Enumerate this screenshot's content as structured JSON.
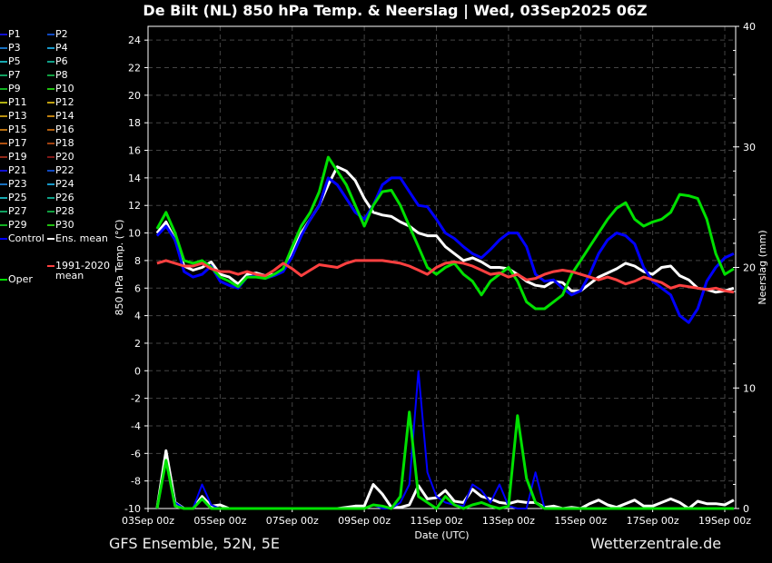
{
  "title": "De Bilt  (NL)  850 hPa Temp. & Neerslag | Wed, 03Sep2025 06Z",
  "footer": {
    "left": "GFS Ensemble, 52N, 5E",
    "right": "Wetterzentrale.de"
  },
  "legend": [
    {
      "label": "P1",
      "color": "#1010d0"
    },
    {
      "label": "P2",
      "color": "#1048c0"
    },
    {
      "label": "P3",
      "color": "#1870c0"
    },
    {
      "label": "P4",
      "color": "#1898c8"
    },
    {
      "label": "P5",
      "color": "#18a8b0"
    },
    {
      "label": "P6",
      "color": "#10a088"
    },
    {
      "label": "P7",
      "color": "#10a060"
    },
    {
      "label": "P8",
      "color": "#10a040"
    },
    {
      "label": "P9",
      "color": "#10b020"
    },
    {
      "label": "P10",
      "color": "#20c010"
    },
    {
      "label": "P11",
      "color": "#b0b010"
    },
    {
      "label": "P12",
      "color": "#c0a010"
    },
    {
      "label": "P13",
      "color": "#b89010"
    },
    {
      "label": "P14",
      "color": "#c08010"
    },
    {
      "label": "P15",
      "color": "#b87010"
    },
    {
      "label": "P16",
      "color": "#b06010"
    },
    {
      "label": "P17",
      "color": "#b05010"
    },
    {
      "label": "P18",
      "color": "#a04010"
    },
    {
      "label": "P19",
      "color": "#902818"
    },
    {
      "label": "P20",
      "color": "#801818"
    },
    {
      "label": "P21",
      "color": "#1010d0"
    },
    {
      "label": "P22",
      "color": "#1048c0"
    },
    {
      "label": "P23",
      "color": "#1870c0"
    },
    {
      "label": "P24",
      "color": "#1898c8"
    },
    {
      "label": "P25",
      "color": "#18a8b0"
    },
    {
      "label": "P26",
      "color": "#10a088"
    },
    {
      "label": "P27",
      "color": "#10a060"
    },
    {
      "label": "P28",
      "color": "#10a040"
    },
    {
      "label": "P29",
      "color": "#10b020"
    },
    {
      "label": "P30",
      "color": "#20c010"
    },
    {
      "label": "Control",
      "color": "#0000ff"
    },
    {
      "label": "Ens. mean",
      "color": "#ffffff"
    },
    {
      "label": "Oper",
      "color": "#00e000"
    },
    {
      "label": "1991-2020\nmean",
      "color": "#ff4040"
    }
  ],
  "chart_data": {
    "type": "line",
    "xlabel": "Date (UTC)",
    "ylabel": "850 hPa Temp. (°C)",
    "y2label": "Neerslag (mm)",
    "ylim": [
      -10,
      25
    ],
    "y2lim": [
      0,
      40
    ],
    "yticks": [
      -10,
      -8,
      -6,
      -4,
      -2,
      0,
      2,
      4,
      6,
      8,
      10,
      12,
      14,
      16,
      18,
      20,
      22,
      24
    ],
    "y2ticks": [
      0,
      10,
      20,
      30,
      40
    ],
    "xticks": [
      "03Sep 00z",
      "05Sep 00z",
      "07Sep 00z",
      "09Sep 00z",
      "11Sep 00z",
      "13Sep 00z",
      "15Sep 00z",
      "17Sep 00z",
      "19Sep 00z"
    ],
    "x_start": "03Sep 06z",
    "x_step_hours": 6,
    "grid": true,
    "legend_position": "left-outside",
    "temperature_series": [
      {
        "name": "Ens. mean",
        "color": "#ffffff",
        "width": 3,
        "values": [
          10.0,
          10.8,
          9.5,
          7.6,
          7.3,
          7.5,
          7.9,
          7.0,
          6.8,
          6.3,
          7.0,
          7.1,
          6.9,
          7.0,
          7.3,
          8.5,
          10.0,
          11.0,
          12.0,
          13.5,
          14.8,
          14.5,
          13.8,
          12.5,
          11.5,
          11.3,
          11.2,
          10.8,
          10.5,
          10.0,
          9.8,
          9.8,
          9.0,
          8.5,
          8.0,
          8.2,
          7.9,
          7.5,
          7.5,
          7.4,
          7.0,
          6.5,
          6.2,
          6.1,
          6.5,
          6.4,
          5.8,
          5.8,
          6.3,
          6.8,
          7.1,
          7.4,
          7.8,
          7.6,
          7.2,
          7.0,
          7.5,
          7.6,
          6.9,
          6.6,
          6.0,
          5.9,
          5.7,
          5.8,
          6.0
        ]
      },
      {
        "name": "Control",
        "color": "#0000ff",
        "width": 3,
        "values": [
          9.8,
          10.5,
          9.5,
          7.2,
          6.8,
          7.0,
          7.6,
          6.5,
          6.2,
          6.0,
          6.8,
          6.9,
          6.7,
          6.9,
          7.2,
          8.3,
          9.8,
          11.0,
          12.0,
          14.0,
          13.5,
          12.5,
          11.5,
          11.0,
          12.0,
          13.5,
          14.0,
          14.0,
          13.0,
          12.0,
          11.9,
          11.0,
          10.0,
          9.6,
          9.0,
          8.5,
          8.2,
          8.8,
          9.5,
          10.0,
          10.0,
          9.0,
          7.0,
          6.5,
          6.6,
          6.0,
          5.5,
          5.8,
          7.0,
          8.5,
          9.5,
          10.0,
          9.8,
          9.2,
          7.5,
          6.5,
          6.0,
          5.5,
          4.0,
          3.5,
          4.5,
          6.5,
          7.5,
          8.2,
          8.5
        ]
      },
      {
        "name": "Oper",
        "color": "#00e000",
        "width": 3,
        "values": [
          10.3,
          11.5,
          10.0,
          8.0,
          7.8,
          8.0,
          7.5,
          6.8,
          6.5,
          6.1,
          6.8,
          6.8,
          6.7,
          7.0,
          7.4,
          9.0,
          10.5,
          11.5,
          13.0,
          15.5,
          14.5,
          13.5,
          12.0,
          10.5,
          12.0,
          13.0,
          13.1,
          12.0,
          10.5,
          9.0,
          7.5,
          7.0,
          7.5,
          7.8,
          7.0,
          6.5,
          5.5,
          6.5,
          7.0,
          7.5,
          6.5,
          5.0,
          4.5,
          4.5,
          5.0,
          5.5,
          7.0,
          8.0,
          9.0,
          10.0,
          11.0,
          11.8,
          12.2,
          11.0,
          10.5,
          10.8,
          11.0,
          11.5,
          12.8,
          12.7,
          12.5,
          11.0,
          8.5,
          7.0,
          7.4
        ]
      },
      {
        "name": "1991-2020 mean",
        "color": "#ff4040",
        "width": 3,
        "values": [
          7.8,
          8.0,
          7.8,
          7.6,
          7.6,
          7.8,
          7.4,
          7.2,
          7.2,
          7.0,
          7.2,
          7.0,
          6.9,
          7.3,
          7.8,
          7.4,
          6.9,
          7.3,
          7.7,
          7.6,
          7.5,
          7.8,
          8.0,
          8.0,
          8.0,
          8.0,
          7.9,
          7.8,
          7.6,
          7.3,
          7.0,
          7.5,
          7.8,
          7.9,
          7.8,
          7.6,
          7.3,
          7.0,
          7.1,
          6.8,
          7.0,
          6.6,
          6.7,
          7.0,
          7.2,
          7.3,
          7.2,
          7.0,
          6.8,
          6.6,
          6.8,
          6.6,
          6.3,
          6.5,
          6.8,
          6.6,
          6.4,
          6.0,
          6.2,
          6.1,
          6.0,
          5.9,
          6.0,
          5.8,
          5.7
        ]
      }
    ],
    "precipitation_series": [
      {
        "name": "Ens. mean",
        "color": "#ffffff",
        "width": 3,
        "values": [
          0,
          4.8,
          0.5,
          0,
          0,
          1.0,
          0.2,
          0.3,
          0,
          0,
          0,
          0,
          0,
          0,
          0,
          0,
          0,
          0,
          0,
          0,
          0,
          0.1,
          0.2,
          0.2,
          2.0,
          1.2,
          0.1,
          0.1,
          0.3,
          1.9,
          0.8,
          0.9,
          1.5,
          0.6,
          0.5,
          1.6,
          1.0,
          0.8,
          0.5,
          0.4,
          0.6,
          0.5,
          0.5,
          0.1,
          0.2,
          0,
          0.1,
          0,
          0.4,
          0.7,
          0.3,
          0.1,
          0.4,
          0.7,
          0.2,
          0.2,
          0.5,
          0.8,
          0.5,
          0,
          0.6,
          0.4,
          0.4,
          0.3,
          0.7
        ]
      },
      {
        "name": "Control",
        "color": "#0000ff",
        "width": 2,
        "values": [
          0,
          4.0,
          0.5,
          0,
          0,
          2.0,
          0.3,
          0,
          0,
          0,
          0,
          0,
          0,
          0,
          0,
          0,
          0,
          0,
          0,
          0,
          0,
          0,
          0,
          0,
          0.3,
          0,
          0,
          0.5,
          2.0,
          11.4,
          3.0,
          1.0,
          0.5,
          0.3,
          0.2,
          2.0,
          1.5,
          0.5,
          2.0,
          0.2,
          0,
          0,
          3.0,
          0,
          0,
          0,
          0,
          0,
          0,
          0,
          0,
          0,
          0,
          0,
          0,
          0,
          0,
          0,
          0,
          0,
          0,
          0,
          0,
          0,
          0
        ]
      },
      {
        "name": "Oper",
        "color": "#00e000",
        "width": 3,
        "values": [
          0,
          4.0,
          0.2,
          0,
          0,
          0.8,
          0,
          0,
          0,
          0,
          0,
          0,
          0,
          0,
          0,
          0,
          0,
          0,
          0,
          0,
          0,
          0,
          0,
          0,
          0.3,
          0.2,
          0,
          1.0,
          8.0,
          1.0,
          0.5,
          0,
          1.0,
          0.3,
          0,
          0.3,
          0.5,
          0.2,
          0,
          0.2,
          7.7,
          2.5,
          0.5,
          0,
          0,
          0,
          0,
          0,
          0,
          0,
          0,
          0,
          0,
          0,
          0,
          0,
          0,
          0,
          0,
          0,
          0,
          0,
          0,
          0,
          0
        ]
      }
    ]
  }
}
